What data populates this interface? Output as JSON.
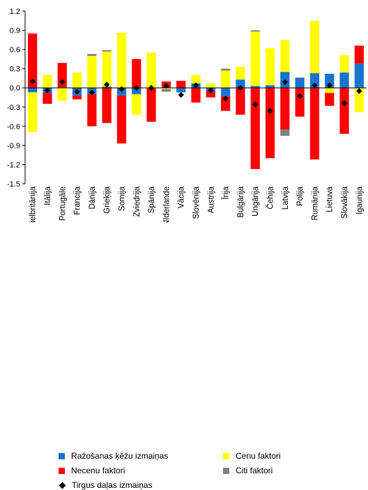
{
  "chart_data": {
    "type": "bar",
    "stacked": true,
    "title": "",
    "xlabel": "",
    "ylabel": "",
    "ylim": [
      -1.5,
      1.2
    ],
    "yticks": [
      "-1.5",
      "-1.2",
      "-0.9",
      "-0.6",
      "-0.3",
      "0.0",
      "0.3",
      "0.6",
      "0.9",
      "1.2"
    ],
    "ytick_values": [
      -1.5,
      -1.2,
      -0.9,
      -0.6,
      -0.3,
      0.0,
      0.3,
      0.6,
      0.9,
      1.2
    ],
    "grid": false,
    "legend_position": "bottom",
    "categories": [
      "Lielbritānija",
      "Itālija",
      "Portugāle",
      "Francija",
      "Dānija",
      "Grieķija",
      "Somija",
      "Zviedrija",
      "Spānija",
      "Nīderlande",
      "Vācija",
      "Slovēnija",
      "Austrija",
      "Īrija",
      "Bulgārija",
      "Ungārija",
      "Čehija",
      "Latvija",
      "Polija",
      "Rumānija",
      "Lietuva",
      "Slovākija",
      "Igaunija"
    ],
    "series": [
      {
        "name": "Ražošanas ķēžu izmaiņas",
        "color": "#1874cd",
        "values": [
          -0.07,
          -0.08,
          0.01,
          -0.12,
          -0.1,
          0.02,
          -0.12,
          -0.1,
          0.0,
          0.0,
          -0.07,
          0.07,
          -0.05,
          -0.13,
          0.13,
          0.03,
          0.04,
          0.25,
          0.16,
          0.23,
          0.22,
          0.24,
          0.38
        ]
      },
      {
        "name": "Cenu faktori",
        "color": "#ffff00",
        "values": [
          -0.62,
          0.2,
          -0.2,
          0.24,
          0.5,
          0.55,
          0.86,
          -0.32,
          0.55,
          -0.02,
          0.0,
          0.13,
          0.07,
          0.27,
          0.2,
          0.85,
          0.58,
          0.5,
          0.0,
          0.82,
          -0.08,
          0.27,
          -0.38
        ]
      },
      {
        "name": "Necenu faktori",
        "color": "#ff0000",
        "values": [
          0.85,
          -0.17,
          0.38,
          -0.06,
          -0.5,
          -0.55,
          -0.75,
          0.45,
          -0.53,
          0.1,
          0.11,
          -0.23,
          -0.1,
          -0.23,
          -0.42,
          -1.27,
          -1.1,
          -0.65,
          -0.45,
          -1.12,
          -0.2,
          -0.72,
          0.28
        ]
      },
      {
        "name": "Citi faktori",
        "color": "#808080",
        "values": [
          0.0,
          0.0,
          0.0,
          0.0,
          0.03,
          0.02,
          0.0,
          0.0,
          0.0,
          -0.04,
          0.0,
          0.0,
          0.0,
          0.03,
          0.0,
          0.02,
          0.0,
          -0.1,
          0.0,
          0.0,
          0.0,
          0.0,
          0.0
        ]
      }
    ],
    "markers": {
      "name": "Tirgus daļas izmaiņas",
      "color": "#000000",
      "values": [
        0.1,
        -0.04,
        0.09,
        -0.06,
        -0.07,
        0.05,
        -0.02,
        0.0,
        0.0,
        0.03,
        -0.11,
        0.04,
        -0.04,
        -0.17,
        0.0,
        -0.26,
        -0.36,
        0.09,
        -0.13,
        0.04,
        0.04,
        -0.24,
        -0.05
      ]
    }
  },
  "legend": [
    {
      "label": "Ražošanas ķēžu izmaiņas",
      "kind": "square",
      "color": "#1874cd"
    },
    {
      "label": "Cenu faktori",
      "kind": "square",
      "color": "#ffff00"
    },
    {
      "label": "Necenu faktori",
      "kind": "square",
      "color": "#ff0000"
    },
    {
      "label": "Citi faktori",
      "kind": "square",
      "color": "#808080"
    },
    {
      "label": "Tirgus daļas izmaiņas",
      "kind": "diamond",
      "color": "#000000"
    }
  ]
}
